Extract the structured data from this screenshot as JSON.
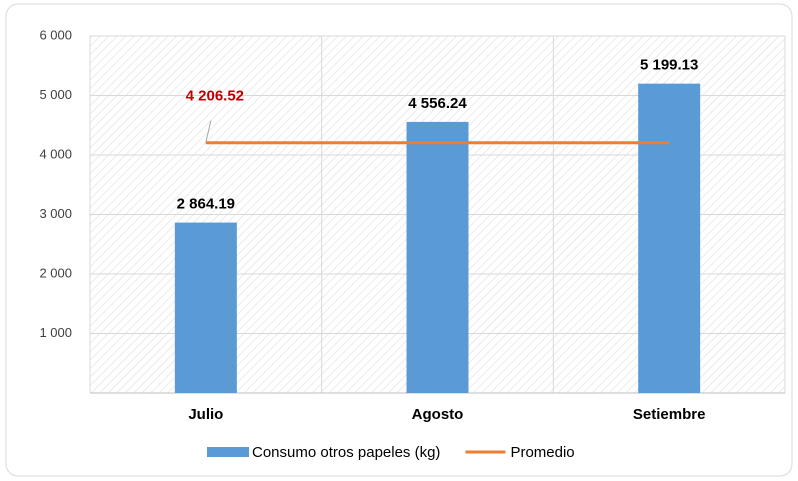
{
  "chart_data": {
    "type": "bar",
    "categories": [
      "Julio",
      "Agosto",
      "Setiembre"
    ],
    "series": [
      {
        "name": "Consumo otros papeles (kg)",
        "type": "bar",
        "color": "#5b9bd5",
        "values": [
          2864.19,
          4556.24,
          5199.13
        ],
        "value_labels": [
          "2 864.19",
          "4 556.24",
          "5 199.13"
        ]
      },
      {
        "name": "Promedio",
        "type": "line",
        "color": "#ed7d31",
        "values": [
          4206.52,
          4206.52,
          4206.52
        ],
        "value_labels": [
          "4 206.52",
          null,
          null
        ],
        "label_color": "#c00000"
      }
    ],
    "ylim": [
      0,
      6000
    ],
    "yticks": [
      {
        "value": 1000,
        "label": "1 000"
      },
      {
        "value": 2000,
        "label": "2 000"
      },
      {
        "value": 3000,
        "label": "3 000"
      },
      {
        "value": 4000,
        "label": "4 000"
      },
      {
        "value": 5000,
        "label": "5 000"
      },
      {
        "value": 6000,
        "label": "6 000"
      }
    ],
    "grid": true,
    "legend": "bottom"
  }
}
